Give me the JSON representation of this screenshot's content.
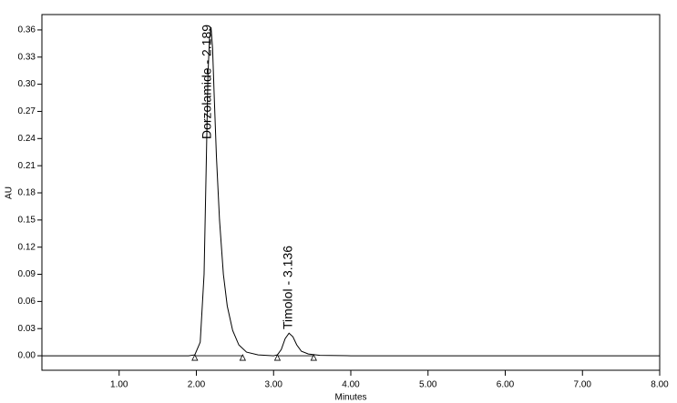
{
  "chart_data": {
    "type": "line",
    "x_label": "Minutes",
    "y_label": "AU",
    "x": [
      0.0,
      1.0,
      1.9,
      1.98,
      2.05,
      2.1,
      2.13,
      2.15,
      2.17,
      2.19,
      2.21,
      2.23,
      2.26,
      2.3,
      2.35,
      2.4,
      2.47,
      2.55,
      2.65,
      2.8,
      3.0,
      3.05,
      3.1,
      3.15,
      3.2,
      3.25,
      3.3,
      3.36,
      3.45,
      3.6,
      4.0,
      8.0
    ],
    "series": [
      {
        "name": "AU",
        "color": "#000000",
        "values": [
          0.0,
          0.0,
          0.0,
          0.001,
          0.015,
          0.09,
          0.22,
          0.31,
          0.35,
          0.363,
          0.34,
          0.29,
          0.22,
          0.15,
          0.09,
          0.055,
          0.028,
          0.012,
          0.004,
          0.001,
          0.0,
          0.001,
          0.007,
          0.019,
          0.025,
          0.021,
          0.012,
          0.005,
          0.002,
          0.0005,
          0.0,
          0.0
        ]
      }
    ],
    "baseline_markers": {
      "x": [
        1.98,
        2.6,
        3.05,
        3.52
      ],
      "values": [
        0.0,
        0.0,
        0.0,
        0.0
      ]
    },
    "annotations": [
      "Dorzolamide - 2.189",
      "Timolol - 3.136"
    ],
    "xlim": [
      0,
      8
    ],
    "ylim": [
      -0.016,
      0.377
    ],
    "xticks": [
      {
        "value": 1,
        "label": "1.00"
      },
      {
        "value": 2,
        "label": "2.00"
      },
      {
        "value": 3,
        "label": "3.00"
      },
      {
        "value": 4,
        "label": "4.00"
      },
      {
        "value": 5,
        "label": "5.00"
      },
      {
        "value": 6,
        "label": "6.00"
      },
      {
        "value": 7,
        "label": "7.00"
      },
      {
        "value": 8,
        "label": "8.00"
      }
    ],
    "yticks": [
      {
        "value": 0,
        "label": "0.00"
      },
      {
        "value": 0.03,
        "label": "0.03"
      },
      {
        "value": 0.06,
        "label": "0.06"
      },
      {
        "value": 0.09,
        "label": "0.09"
      },
      {
        "value": 0.12,
        "label": "0.12"
      },
      {
        "value": 0.15,
        "label": "0.15"
      },
      {
        "value": 0.18,
        "label": "0.18"
      },
      {
        "value": 0.21,
        "label": "0.21"
      },
      {
        "value": 0.24,
        "label": "0.24"
      },
      {
        "value": 0.27,
        "label": "0.27"
      },
      {
        "value": 0.3,
        "label": "0.30"
      },
      {
        "value": 0.33,
        "label": "0.33"
      },
      {
        "value": 0.36,
        "label": "0.36"
      }
    ]
  }
}
